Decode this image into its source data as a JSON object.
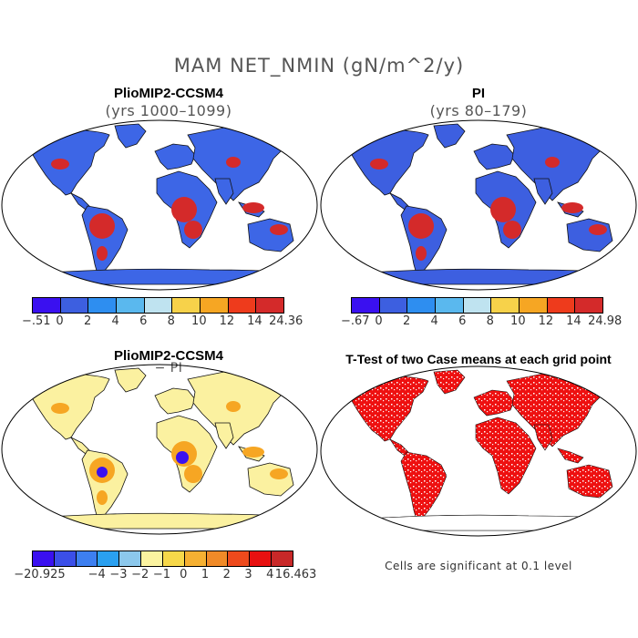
{
  "title": "MAM NET_NMIN (gN/m^2/y)",
  "panels": [
    {
      "title": "PlioMIP2-CCSM4",
      "subtitle": "(yrs 1000–1099)",
      "colorbar": {
        "colors": [
          "#3a10f0",
          "#3d5fe0",
          "#2e8ef0",
          "#5ab8ee",
          "#bfe3f0",
          "#f7d24a",
          "#f6a623",
          "#ee3b1c",
          "#d42a2a"
        ],
        "tick_labels": [
          "−.51",
          "0",
          "2",
          "4",
          "6",
          "8",
          "10",
          "12",
          "14",
          "24.36"
        ]
      }
    },
    {
      "title": "PI",
      "subtitle": "(yrs 80–179)",
      "colorbar": {
        "colors": [
          "#3a10f0",
          "#3d5fe0",
          "#2e8ef0",
          "#5ab8ee",
          "#bfe3f0",
          "#f7d24a",
          "#f6a623",
          "#ee3b1c",
          "#d42a2a"
        ],
        "tick_labels": [
          "−.67",
          "0",
          "2",
          "4",
          "6",
          "8",
          "10",
          "12",
          "14",
          "24.98"
        ]
      }
    },
    {
      "title": "PlioMIP2-CCSM4",
      "subtitle": "− PI",
      "colorbar": {
        "colors": [
          "#3a10f0",
          "#3b4fe8",
          "#3d7ff0",
          "#2aa0f0",
          "#8cc8ec",
          "#fbf3a0",
          "#f7d84a",
          "#f5b032",
          "#f08a28",
          "#ee4a1c",
          "#e81010",
          "#c82828"
        ],
        "tick_labels": [
          "−20.925",
          "−4",
          "−3",
          "−2",
          "−1",
          "0",
          "1",
          "2",
          "3",
          "4",
          "16.463"
        ]
      }
    },
    {
      "title": "T-Test of two Case means at each grid point",
      "note": "Cells are significant at 0.1 level"
    }
  ],
  "map_colors": {
    "panel1_base": "#3d66e6",
    "panel2_base": "#3d5fe0",
    "panel3_base": "#fbf1a0",
    "panel4_sig": "#ee1010",
    "hot": "#d42a2a",
    "warm": "#f6a623",
    "cold": "#3a10f0"
  }
}
